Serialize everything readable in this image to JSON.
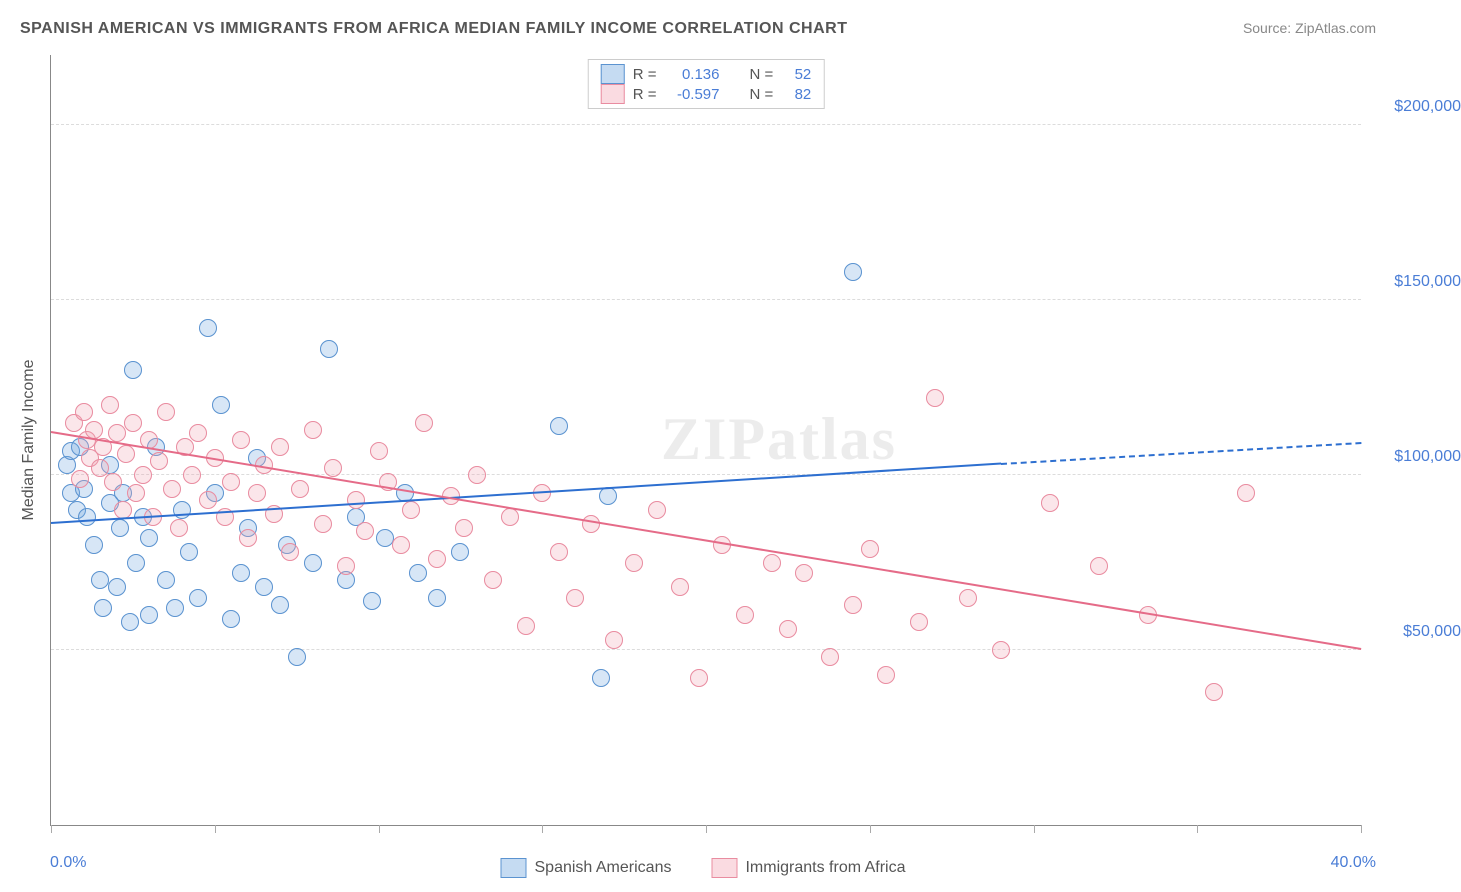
{
  "title": "SPANISH AMERICAN VS IMMIGRANTS FROM AFRICA MEDIAN FAMILY INCOME CORRELATION CHART",
  "source_label": "Source: ",
  "source_name": "ZipAtlas.com",
  "watermark": "ZIPatlas",
  "y_axis_label": "Median Family Income",
  "chart": {
    "type": "scatter",
    "background_color": "#ffffff",
    "grid_color": "#dcdcdc",
    "axis_color": "#888888",
    "tick_label_color": "#4a7dd6",
    "xlim": [
      0,
      40
    ],
    "ylim": [
      0,
      220000
    ],
    "y_gridlines": [
      50000,
      100000,
      150000,
      200000
    ],
    "y_tick_labels": [
      "$50,000",
      "$100,000",
      "$150,000",
      "$200,000"
    ],
    "x_ticks": [
      0,
      5,
      10,
      15,
      20,
      25,
      30,
      35,
      40
    ],
    "x_min_label": "0.0%",
    "x_max_label": "40.0%",
    "marker_radius": 9,
    "marker_border_width": 1.5,
    "marker_fill_opacity": 0.28,
    "trend_line_width": 2.5
  },
  "series": [
    {
      "name": "Spanish Americans",
      "color": "#6fa4de",
      "stroke": "#5b93d0",
      "R": "0.136",
      "N": "52",
      "trend": {
        "x1": 0,
        "y1": 86000,
        "x2": 29,
        "y2": 103000,
        "extend_x": 40,
        "extend_y": 109000
      },
      "points": [
        [
          0.5,
          103000
        ],
        [
          0.6,
          107000
        ],
        [
          0.6,
          95000
        ],
        [
          0.8,
          90000
        ],
        [
          0.9,
          108000
        ],
        [
          1.0,
          96000
        ],
        [
          1.1,
          88000
        ],
        [
          1.3,
          80000
        ],
        [
          1.5,
          70000
        ],
        [
          1.6,
          62000
        ],
        [
          1.8,
          92000
        ],
        [
          1.8,
          103000
        ],
        [
          2.0,
          68000
        ],
        [
          2.1,
          85000
        ],
        [
          2.2,
          95000
        ],
        [
          2.4,
          58000
        ],
        [
          2.5,
          130000
        ],
        [
          2.6,
          75000
        ],
        [
          2.8,
          88000
        ],
        [
          3.0,
          60000
        ],
        [
          3.0,
          82000
        ],
        [
          3.2,
          108000
        ],
        [
          3.5,
          70000
        ],
        [
          3.8,
          62000
        ],
        [
          4.0,
          90000
        ],
        [
          4.2,
          78000
        ],
        [
          4.5,
          65000
        ],
        [
          4.8,
          142000
        ],
        [
          5.0,
          95000
        ],
        [
          5.2,
          120000
        ],
        [
          5.5,
          59000
        ],
        [
          5.8,
          72000
        ],
        [
          6.0,
          85000
        ],
        [
          6.3,
          105000
        ],
        [
          6.5,
          68000
        ],
        [
          7.0,
          63000
        ],
        [
          7.2,
          80000
        ],
        [
          7.5,
          48000
        ],
        [
          8.0,
          75000
        ],
        [
          8.5,
          136000
        ],
        [
          9.0,
          70000
        ],
        [
          9.3,
          88000
        ],
        [
          9.8,
          64000
        ],
        [
          10.2,
          82000
        ],
        [
          10.8,
          95000
        ],
        [
          11.2,
          72000
        ],
        [
          11.8,
          65000
        ],
        [
          12.5,
          78000
        ],
        [
          15.5,
          114000
        ],
        [
          16.8,
          42000
        ],
        [
          17.0,
          94000
        ],
        [
          24.5,
          158000
        ]
      ]
    },
    {
      "name": "Immigrants from Africa",
      "color": "#f2a5b5",
      "stroke": "#e98ca0",
      "R": "-0.597",
      "N": "82",
      "trend": {
        "x1": 0,
        "y1": 112000,
        "x2": 40,
        "y2": 50000,
        "extend_x": 40,
        "extend_y": 50000
      },
      "points": [
        [
          0.7,
          115000
        ],
        [
          0.9,
          99000
        ],
        [
          1.0,
          118000
        ],
        [
          1.1,
          110000
        ],
        [
          1.2,
          105000
        ],
        [
          1.3,
          113000
        ],
        [
          1.5,
          102000
        ],
        [
          1.6,
          108000
        ],
        [
          1.8,
          120000
        ],
        [
          1.9,
          98000
        ],
        [
          2.0,
          112000
        ],
        [
          2.2,
          90000
        ],
        [
          2.3,
          106000
        ],
        [
          2.5,
          115000
        ],
        [
          2.6,
          95000
        ],
        [
          2.8,
          100000
        ],
        [
          3.0,
          110000
        ],
        [
          3.1,
          88000
        ],
        [
          3.3,
          104000
        ],
        [
          3.5,
          118000
        ],
        [
          3.7,
          96000
        ],
        [
          3.9,
          85000
        ],
        [
          4.1,
          108000
        ],
        [
          4.3,
          100000
        ],
        [
          4.5,
          112000
        ],
        [
          4.8,
          93000
        ],
        [
          5.0,
          105000
        ],
        [
          5.3,
          88000
        ],
        [
          5.5,
          98000
        ],
        [
          5.8,
          110000
        ],
        [
          6.0,
          82000
        ],
        [
          6.3,
          95000
        ],
        [
          6.5,
          103000
        ],
        [
          6.8,
          89000
        ],
        [
          7.0,
          108000
        ],
        [
          7.3,
          78000
        ],
        [
          7.6,
          96000
        ],
        [
          8.0,
          113000
        ],
        [
          8.3,
          86000
        ],
        [
          8.6,
          102000
        ],
        [
          9.0,
          74000
        ],
        [
          9.3,
          93000
        ],
        [
          9.6,
          84000
        ],
        [
          10.0,
          107000
        ],
        [
          10.3,
          98000
        ],
        [
          10.7,
          80000
        ],
        [
          11.0,
          90000
        ],
        [
          11.4,
          115000
        ],
        [
          11.8,
          76000
        ],
        [
          12.2,
          94000
        ],
        [
          12.6,
          85000
        ],
        [
          13.0,
          100000
        ],
        [
          13.5,
          70000
        ],
        [
          14.0,
          88000
        ],
        [
          14.5,
          57000
        ],
        [
          15.0,
          95000
        ],
        [
          15.5,
          78000
        ],
        [
          16.0,
          65000
        ],
        [
          16.5,
          86000
        ],
        [
          17.2,
          53000
        ],
        [
          17.8,
          75000
        ],
        [
          18.5,
          90000
        ],
        [
          19.2,
          68000
        ],
        [
          19.8,
          42000
        ],
        [
          20.5,
          80000
        ],
        [
          21.2,
          60000
        ],
        [
          22.0,
          75000
        ],
        [
          22.5,
          56000
        ],
        [
          23.0,
          72000
        ],
        [
          23.8,
          48000
        ],
        [
          24.5,
          63000
        ],
        [
          25.0,
          79000
        ],
        [
          25.5,
          43000
        ],
        [
          26.5,
          58000
        ],
        [
          27.0,
          122000
        ],
        [
          28.0,
          65000
        ],
        [
          29.0,
          50000
        ],
        [
          30.5,
          92000
        ],
        [
          32.0,
          74000
        ],
        [
          33.5,
          60000
        ],
        [
          35.5,
          38000
        ],
        [
          36.5,
          95000
        ]
      ]
    }
  ],
  "legend_top": {
    "r_label": "R  =",
    "n_label": "N  ="
  },
  "legend_bottom": {
    "items": [
      "Spanish Americans",
      "Immigrants from Africa"
    ]
  }
}
